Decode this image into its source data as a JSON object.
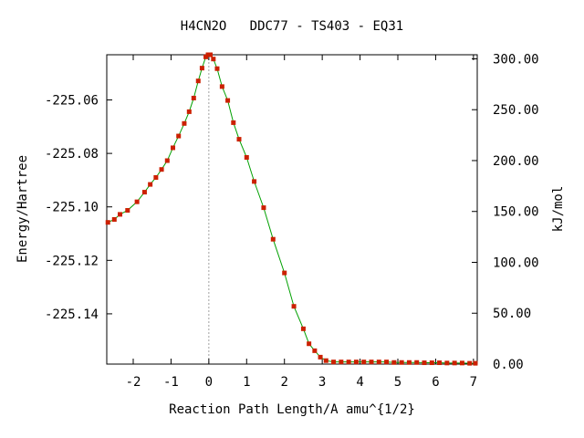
{
  "chart_data": {
    "type": "line",
    "title": "H4CN2O   DDC77 - TS403 - EQ31",
    "xlabel": "Reaction Path Length/A amu^{1/2}",
    "ylabel_left": "Energy/Hartree",
    "ylabel_right": "kJ/mol",
    "xlim": [
      -2.7,
      7.1
    ],
    "ylim_left": [
      -225.1588,
      -225.0431
    ],
    "ylim_right": [
      0,
      304
    ],
    "x_ticks": [
      "-2",
      "-1",
      "0",
      "1",
      "2",
      "3",
      "4",
      "5",
      "6",
      "7"
    ],
    "y_left_ticks": [
      "-225.06",
      "-225.08",
      "-225.10",
      "-225.12",
      "-225.14"
    ],
    "y_right_ticks": [
      "300.00",
      "250.00",
      "200.00",
      "150.00",
      "100.00",
      "50.00",
      "0.00"
    ],
    "ts_marker_x": 0,
    "line_color": "#00a000",
    "marker_color": "#cc2000",
    "grid": false,
    "series": [
      {
        "x": [
          -2.67,
          -2.5,
          -2.35,
          -2.15,
          -1.9,
          -1.7,
          -1.55,
          -1.4,
          -1.25,
          -1.1,
          -0.95,
          -0.8,
          -0.65,
          -0.52,
          -0.4,
          -0.28,
          -0.18,
          -0.08,
          -0.02,
          0.04,
          0.12,
          0.22,
          0.35,
          0.5,
          0.65,
          0.8,
          1.0,
          1.2,
          1.45,
          1.7,
          2.0,
          2.25,
          2.5,
          2.65,
          2.8,
          2.95,
          3.1,
          3.3,
          3.5,
          3.7,
          3.9,
          4.1,
          4.3,
          4.5,
          4.7,
          4.9,
          5.1,
          5.3,
          5.5,
          5.7,
          5.9,
          6.1,
          6.3,
          6.5,
          6.7,
          6.9,
          7.05
        ],
        "y": [
          -225.1058,
          -225.1047,
          -225.1028,
          -225.1013,
          -225.0981,
          -225.0945,
          -225.0916,
          -225.089,
          -225.086,
          -225.0827,
          -225.0779,
          -225.0735,
          -225.0688,
          -225.0644,
          -225.0593,
          -225.0529,
          -225.0481,
          -225.0439,
          -225.0431,
          -225.0431,
          -225.0447,
          -225.0483,
          -225.055,
          -225.0602,
          -225.0685,
          -225.0747,
          -225.0815,
          -225.0905,
          -225.1003,
          -225.1121,
          -225.1247,
          -225.1372,
          -225.1456,
          -225.1512,
          -225.1538,
          -225.1562,
          -225.1575,
          -225.158,
          -225.158,
          -225.158,
          -225.158,
          -225.158,
          -225.158,
          -225.158,
          -225.158,
          -225.1582,
          -225.1582,
          -225.1582,
          -225.1582,
          -225.1583,
          -225.1583,
          -225.1583,
          -225.1584,
          -225.1584,
          -225.1584,
          -225.1585,
          -225.1585
        ]
      }
    ]
  }
}
